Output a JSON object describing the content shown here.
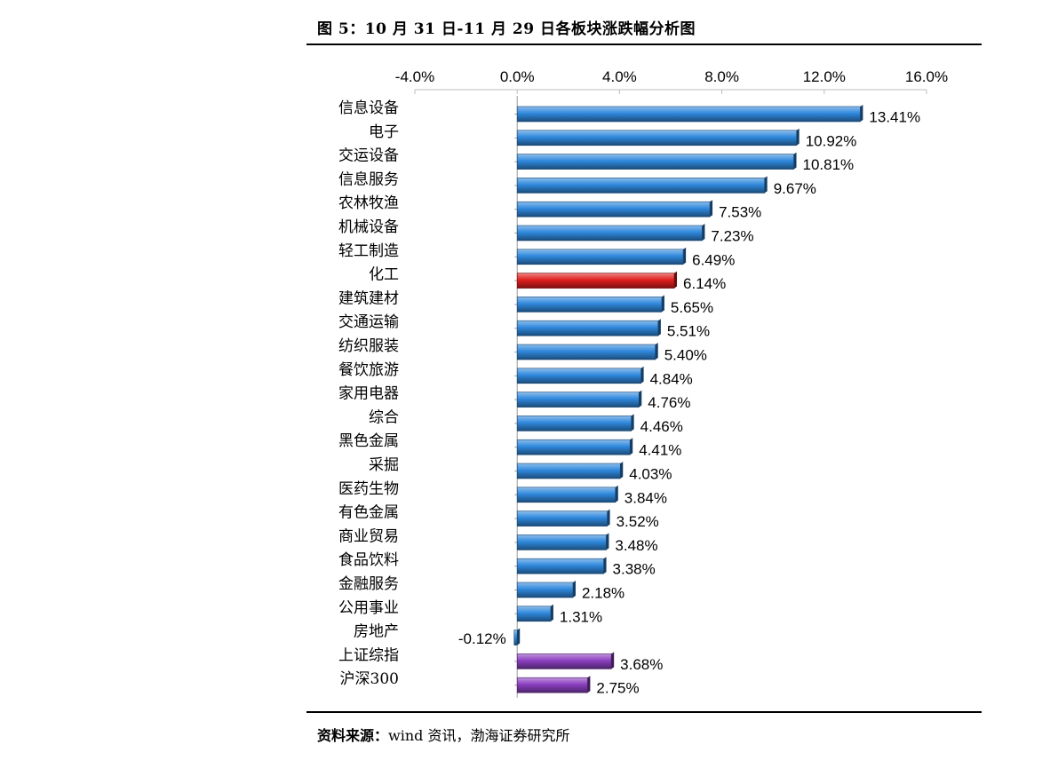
{
  "figure": {
    "title": "图 5：10 月 31 日-11 月 29 日各板块涨跌幅分析图",
    "source_label": "资料来源：",
    "source_text": "wind 资讯，渤海证券研究所"
  },
  "colors": {
    "default_bar": "#2f88dc",
    "highlight_bar": "#e0201e",
    "index_bar": "#8b3fc0"
  },
  "chart_data": {
    "type": "bar",
    "orientation": "horizontal",
    "xlim": [
      -4,
      16
    ],
    "x_ticks": [
      "-4.0%",
      "0.0%",
      "4.0%",
      "8.0%",
      "12.0%",
      "16.0%"
    ],
    "x_tick_values": [
      -4,
      0,
      4,
      8,
      12,
      16
    ],
    "grid": false,
    "legend": "none",
    "categories": [
      "信息设备",
      "电子",
      "交运设备",
      "信息服务",
      "农林牧渔",
      "机械设备",
      "轻工制造",
      "化工",
      "建筑建材",
      "交通运输",
      "纺织服装",
      "餐饮旅游",
      "家用电器",
      "综合",
      "黑色金属",
      "采掘",
      "医药生物",
      "有色金属",
      "商业贸易",
      "食品饮料",
      "金融服务",
      "公用事业",
      "房地产",
      "上证综指",
      "沪深300"
    ],
    "values": [
      13.41,
      10.92,
      10.81,
      9.67,
      7.53,
      7.23,
      6.49,
      6.14,
      5.65,
      5.51,
      5.4,
      4.84,
      4.76,
      4.46,
      4.41,
      4.03,
      3.84,
      3.52,
      3.48,
      3.38,
      2.18,
      1.31,
      -0.12,
      3.68,
      2.75
    ],
    "value_labels": [
      "13.41%",
      "10.92%",
      "10.81%",
      "9.67%",
      "7.53%",
      "7.23%",
      "6.49%",
      "6.14%",
      "5.65%",
      "5.51%",
      "5.40%",
      "4.84%",
      "4.76%",
      "4.46%",
      "4.41%",
      "4.03%",
      "3.84%",
      "3.52%",
      "3.48%",
      "3.38%",
      "2.18%",
      "1.31%",
      "-0.12%",
      "3.68%",
      "2.75%"
    ],
    "bar_color_keys": [
      "default_bar",
      "default_bar",
      "default_bar",
      "default_bar",
      "default_bar",
      "default_bar",
      "default_bar",
      "highlight_bar",
      "default_bar",
      "default_bar",
      "default_bar",
      "default_bar",
      "default_bar",
      "default_bar",
      "default_bar",
      "default_bar",
      "default_bar",
      "default_bar",
      "default_bar",
      "default_bar",
      "default_bar",
      "default_bar",
      "default_bar",
      "index_bar",
      "index_bar"
    ]
  }
}
